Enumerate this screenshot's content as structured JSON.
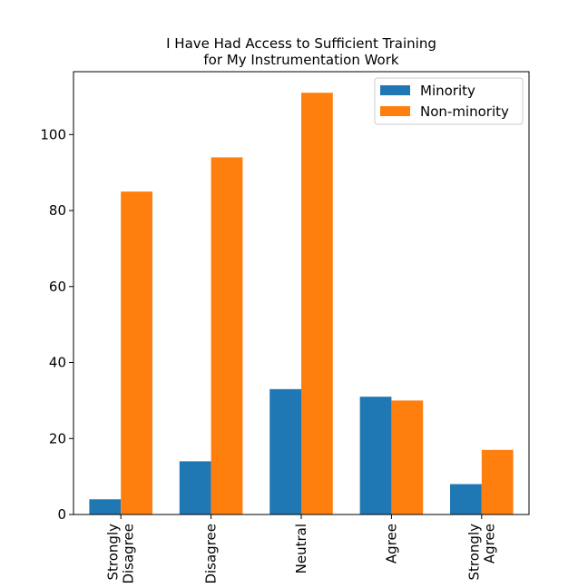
{
  "chart_data": {
    "type": "bar",
    "title_lines": [
      "I Have Had Access to Sufficient Training",
      "for My Instrumentation Work"
    ],
    "xlabel": "",
    "ylabel": "",
    "categories": [
      [
        "Strongly",
        "Disagree"
      ],
      [
        "Disagree"
      ],
      [
        "Neutral"
      ],
      [
        "Agree"
      ],
      [
        "Strongly",
        "Agree"
      ]
    ],
    "series": [
      {
        "name": "Minority",
        "color": "#1f77b4",
        "values": [
          4,
          14,
          33,
          31,
          8
        ]
      },
      {
        "name": "Non-minority",
        "color": "#ff7f0e",
        "values": [
          85,
          94,
          111,
          30,
          17
        ]
      }
    ],
    "ylim": [
      0,
      116.55
    ],
    "yticks": [
      0,
      20,
      40,
      60,
      80,
      100
    ],
    "grid": false,
    "legend_position": "top-right"
  }
}
